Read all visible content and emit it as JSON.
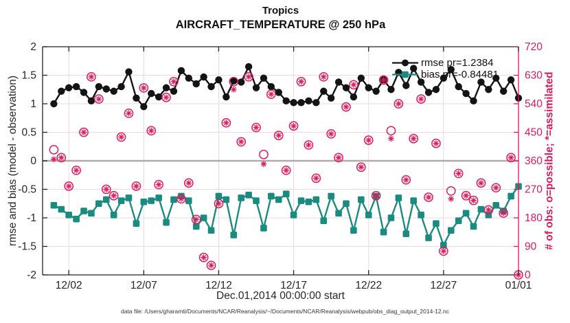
{
  "colors": {
    "rmse": "#141414",
    "bias": "#1A8B80",
    "obs": "#E0185C",
    "grid": "#F2D5DD",
    "zero_line": "#B3A9AD",
    "axis": "#222222",
    "tick_label": "#262626"
  },
  "figure": {
    "footer": "data file: /Users/gharamti/Documents/NCAR/Reanalysis/~/Documents/NCAR/Reanalysis/webpub/obs_diag_output_2014-12.nc"
  },
  "chart_data": {
    "type": "line",
    "title": "Tropics",
    "subtitle": "AIRCRAFT_TEMPERATURE @ 250 hPa",
    "xlabel": "Dec.01,2014 00:00:00 start",
    "ylabel_left": "rmse and bias (model - observation)",
    "ylabel_right": "# of obs: o=possible; *=assimilated",
    "grid": true,
    "legend_position": "upper-right-inside, no box",
    "legend": [
      "rmse pr=1.2384",
      "bias pr=-0.84481"
    ],
    "x_axis": {
      "units": "days since Dec.01,2014 00:00:00",
      "range": [
        -0.75,
        31
      ],
      "tick_positions": [
        1,
        6,
        11,
        16,
        21,
        26,
        31
      ],
      "tick_labels": [
        "12/02",
        "12/07",
        "12/12",
        "12/17",
        "12/22",
        "12/27",
        "01/01"
      ]
    },
    "left_axis": {
      "range": [
        -2,
        2
      ],
      "ticks": [
        -2,
        -1.5,
        -1,
        -0.5,
        0,
        0.5,
        1,
        1.5,
        2
      ]
    },
    "right_axis": {
      "range": [
        0,
        720
      ],
      "ticks": [
        0,
        90,
        180,
        270,
        360,
        450,
        540,
        630,
        720
      ]
    },
    "x": [
      0,
      0.5,
      1,
      1.5,
      2,
      2.5,
      3,
      3.5,
      4,
      4.5,
      5,
      5.5,
      6,
      6.5,
      7,
      7.5,
      8,
      8.5,
      9,
      9.5,
      10,
      10.5,
      11,
      11.5,
      12,
      12.5,
      13,
      13.5,
      14,
      14.5,
      15,
      15.5,
      16,
      16.5,
      17,
      17.5,
      18,
      18.5,
      19,
      19.5,
      20,
      20.5,
      21,
      21.5,
      22,
      22.5,
      23,
      23.5,
      24,
      24.5,
      25,
      25.5,
      26,
      26.5,
      27,
      27.5,
      28,
      28.5,
      29,
      29.5,
      30,
      30.5,
      31
    ],
    "series": [
      {
        "name": "rmse",
        "axis": "left",
        "style": "line",
        "marker": "filled-circle",
        "values": [
          1.0,
          1.22,
          1.28,
          1.3,
          1.2,
          1.05,
          1.3,
          1.26,
          1.22,
          1.3,
          1.56,
          1.1,
          0.95,
          1.18,
          1.12,
          1.28,
          1.22,
          1.58,
          1.45,
          1.35,
          1.47,
          1.3,
          1.42,
          1.12,
          1.4,
          1.38,
          1.65,
          1.28,
          1.45,
          1.3,
          1.2,
          1.05,
          1.02,
          1.02,
          1.05,
          1.02,
          1.22,
          1.1,
          1.38,
          1.28,
          1.12,
          1.45,
          1.28,
          1.22,
          1.42,
          1.25,
          1.55,
          1.32,
          1.62,
          1.38,
          1.2,
          1.25,
          1.45,
          1.6,
          1.3,
          1.18,
          1.05,
          1.38,
          1.25,
          1.45,
          1.22,
          1.42,
          1.1
        ]
      },
      {
        "name": "bias",
        "axis": "left",
        "style": "line",
        "marker": "filled-square",
        "values": [
          -0.78,
          -0.85,
          -0.95,
          -1.02,
          -0.88,
          -0.92,
          -0.75,
          -0.68,
          -0.95,
          -0.7,
          -0.65,
          -1.1,
          -0.72,
          -0.7,
          -0.65,
          -1.08,
          -0.68,
          -0.62,
          -0.7,
          -1.15,
          -1.0,
          -1.22,
          -0.62,
          -0.68,
          -1.3,
          -0.65,
          -0.6,
          -0.7,
          -1.18,
          -0.62,
          -0.68,
          -0.58,
          -0.95,
          -0.7,
          -0.72,
          -0.68,
          -1.05,
          -0.62,
          -0.92,
          -0.75,
          -1.22,
          -0.68,
          -0.95,
          -0.62,
          -1.25,
          -1.0,
          -0.65,
          -1.28,
          -0.7,
          -0.95,
          -1.35,
          -1.1,
          -1.48,
          -1.22,
          -1.05,
          -0.92,
          -1.15,
          -0.85,
          -0.95,
          -0.78,
          -0.88,
          -0.62,
          -0.45
        ]
      },
      {
        "name": "possible obs",
        "axis": "right",
        "style": "scatter",
        "marker": "open-circle",
        "values": [
          395,
          370,
          280,
          330,
          450,
          625,
          555,
          270,
          250,
          435,
          510,
          280,
          590,
          455,
          285,
          560,
          610,
          240,
          290,
          175,
          55,
          30,
          225,
          480,
          610,
          420,
          625,
          465,
          380,
          570,
          440,
          330,
          470,
          610,
          410,
          305,
          625,
          445,
          370,
          530,
          600,
          340,
          425,
          250,
          615,
          455,
          540,
          300,
          430,
          555,
          245,
          415,
          75,
          265,
          320,
          250,
          235,
          290,
          205,
          275,
          195,
          370,
          0
        ]
      },
      {
        "name": "assimilated obs",
        "axis": "right",
        "style": "scatter",
        "marker": "asterisk",
        "values": [
          365,
          370,
          280,
          330,
          450,
          625,
          555,
          270,
          250,
          435,
          510,
          280,
          590,
          455,
          285,
          560,
          610,
          240,
          290,
          175,
          55,
          30,
          225,
          480,
          585,
          420,
          625,
          465,
          350,
          570,
          440,
          330,
          470,
          610,
          410,
          305,
          625,
          445,
          370,
          530,
          600,
          340,
          425,
          250,
          615,
          430,
          540,
          300,
          430,
          555,
          245,
          415,
          75,
          240,
          320,
          250,
          235,
          290,
          205,
          275,
          195,
          370,
          0
        ]
      }
    ]
  }
}
